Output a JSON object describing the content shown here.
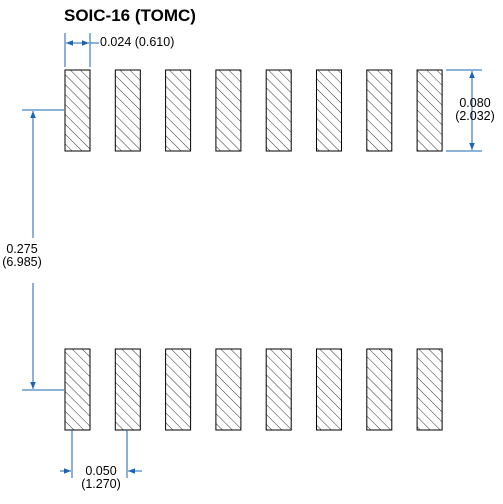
{
  "title": "SOIC-16 (TOMC)",
  "dimensions": {
    "pad_width": {
      "inch": "0.024",
      "mm": "(0.610)"
    },
    "pad_length": {
      "inch": "0.080",
      "mm": "(2.032)"
    },
    "row_spacing": {
      "inch": "0.275",
      "mm": "(6.985)"
    },
    "pitch": {
      "inch": "0.050",
      "mm": "(1.270)"
    }
  }
}
